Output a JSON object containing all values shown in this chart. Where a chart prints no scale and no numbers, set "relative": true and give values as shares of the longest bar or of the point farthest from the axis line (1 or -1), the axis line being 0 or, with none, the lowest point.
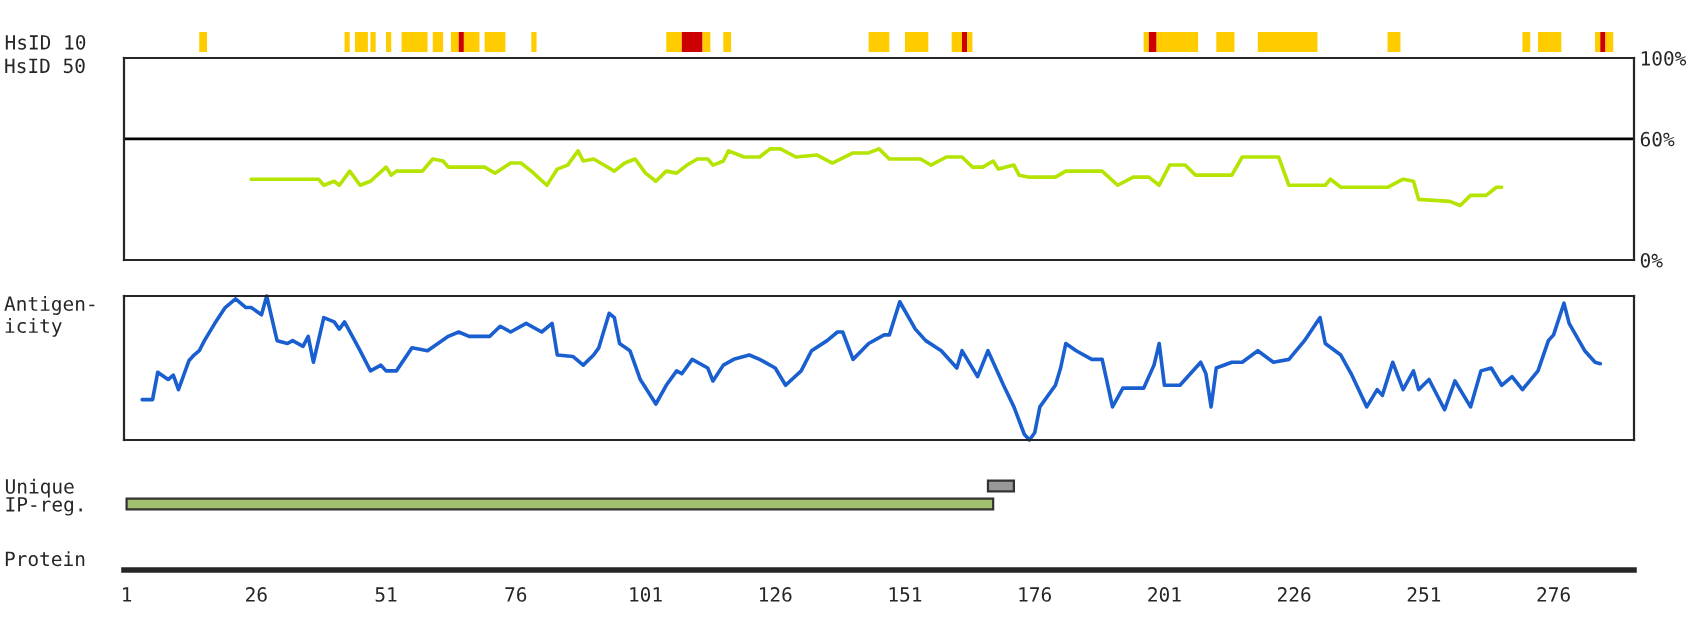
{
  "chart_data": [
    {
      "type": "bar",
      "orientation": "horizontal",
      "categories": [
        "HsID 10"
      ],
      "xlim": [
        0.5,
        291.5
      ],
      "tick_labels": "y",
      "series": [
        {
          "color": "#ffcc00",
          "base": [
            15
          ],
          "values": [
            1.5
          ]
        },
        {
          "color": "#ffcc00",
          "base": [
            43
          ],
          "values": [
            1
          ]
        },
        {
          "color": "#ffcc00",
          "base": [
            45
          ],
          "values": [
            2.5
          ]
        },
        {
          "color": "#ffcc00",
          "base": [
            48
          ],
          "values": [
            1
          ]
        },
        {
          "color": "#ffcc00",
          "base": [
            51
          ],
          "values": [
            1
          ]
        },
        {
          "color": "#ffcc00",
          "base": [
            54
          ],
          "values": [
            5
          ]
        },
        {
          "color": "#ffcc00",
          "base": [
            60
          ],
          "values": [
            2
          ]
        },
        {
          "color": "#ffcc00",
          "base": [
            63.5
          ],
          "values": [
            1.5
          ]
        },
        {
          "color": "#cc0000",
          "base": [
            65
          ],
          "values": [
            1
          ]
        },
        {
          "color": "#ffcc00",
          "base": [
            66
          ],
          "values": [
            3
          ]
        },
        {
          "color": "#ffcc00",
          "base": [
            70
          ],
          "values": [
            4
          ]
        },
        {
          "color": "#ffcc00",
          "base": [
            79
          ],
          "values": [
            1
          ]
        },
        {
          "color": "#ffcc00",
          "base": [
            105
          ],
          "values": [
            3
          ]
        },
        {
          "color": "#cc0000",
          "base": [
            108
          ],
          "values": [
            4
          ]
        },
        {
          "color": "#ffcc00",
          "base": [
            112
          ],
          "values": [
            1.5
          ]
        },
        {
          "color": "#ffcc00",
          "base": [
            116
          ],
          "values": [
            1.5
          ]
        },
        {
          "color": "#ffcc00",
          "base": [
            144
          ],
          "values": [
            4
          ]
        },
        {
          "color": "#ffcc00",
          "base": [
            151
          ],
          "values": [
            4.5
          ]
        },
        {
          "color": "#ffcc00",
          "base": [
            160
          ],
          "values": [
            2
          ]
        },
        {
          "color": "#cc0000",
          "base": [
            162
          ],
          "values": [
            1
          ]
        },
        {
          "color": "#ffcc00",
          "base": [
            163
          ],
          "values": [
            1
          ]
        },
        {
          "color": "#ffcc00",
          "base": [
            197
          ],
          "values": [
            1
          ]
        },
        {
          "color": "#cc0000",
          "base": [
            198
          ],
          "values": [
            1.5
          ]
        },
        {
          "color": "#ffcc00",
          "base": [
            199.5
          ],
          "values": [
            8
          ]
        },
        {
          "color": "#ffcc00",
          "base": [
            211
          ],
          "values": [
            3.5
          ]
        },
        {
          "color": "#ffcc00",
          "base": [
            219
          ],
          "values": [
            11.5
          ]
        },
        {
          "color": "#ffcc00",
          "base": [
            244
          ],
          "values": [
            2.5
          ]
        },
        {
          "color": "#ffcc00",
          "base": [
            270
          ],
          "values": [
            1.5
          ]
        },
        {
          "color": "#ffcc00",
          "base": [
            273
          ],
          "values": [
            4.5
          ]
        },
        {
          "color": "#ffcc00",
          "base": [
            284
          ],
          "values": [
            1
          ]
        },
        {
          "color": "#cc0000",
          "base": [
            285
          ],
          "values": [
            1
          ]
        },
        {
          "color": "#ffcc00",
          "base": [
            286
          ],
          "values": [
            1.5
          ]
        }
      ]
    },
    {
      "type": "line",
      "ylabel": "HsID 50",
      "xlim": [
        0.5,
        291.5
      ],
      "ylim": [
        0,
        100
      ],
      "yticks": [
        {
          "value": 0,
          "label": "0%"
        },
        {
          "value": 60,
          "label": "60%"
        },
        {
          "value": 100,
          "label": "100%"
        }
      ],
      "tick_labels": "y",
      "ref_lines": [
        {
          "axis": "y",
          "value": 60,
          "color": "#000000"
        }
      ],
      "series": [
        {
          "color": "#b4e400",
          "x": [
            25,
            38,
            39,
            41,
            42,
            44,
            46,
            48,
            51,
            52,
            53,
            58,
            60,
            62,
            63,
            70,
            72,
            75,
            77,
            79,
            82,
            84,
            86,
            88,
            89,
            91,
            93,
            95,
            97,
            99,
            101,
            103,
            105,
            107,
            109,
            111,
            113,
            114,
            116,
            117,
            120,
            123,
            125,
            127,
            130,
            134,
            137,
            141,
            144,
            146,
            148,
            154,
            156,
            159,
            162,
            164,
            166,
            168,
            169,
            172,
            173,
            175,
            180,
            182,
            189,
            192,
            195,
            198,
            200,
            202,
            205,
            207,
            214,
            216,
            223,
            225,
            232,
            233,
            235,
            244,
            247,
            249,
            250,
            256,
            258,
            260,
            263,
            265,
            266
          ],
          "values": [
            40,
            40,
            37,
            39,
            37,
            44,
            37,
            39,
            46,
            42,
            44,
            44,
            50,
            49,
            46,
            46,
            43,
            48,
            48,
            44,
            37,
            45,
            47,
            54,
            49,
            50,
            47,
            44,
            48,
            50,
            43,
            39,
            44,
            43,
            47,
            50,
            50,
            47,
            49,
            54,
            51,
            51,
            55,
            55,
            51,
            52,
            48,
            53,
            53,
            55,
            50,
            50,
            47,
            51,
            51,
            46,
            46,
            49,
            45,
            47,
            42,
            41,
            41,
            44,
            44,
            37,
            41,
            41,
            37,
            47,
            47,
            42,
            42,
            51,
            51,
            37,
            37,
            40,
            36,
            36,
            40,
            39,
            30,
            29,
            27,
            32,
            32,
            36,
            36
          ]
        }
      ]
    },
    {
      "type": "line",
      "ylabel": "Antigen-\nicity",
      "xlim": [
        0.5,
        291.5
      ],
      "relative": true,
      "tick_labels": false,
      "series": [
        {
          "color": "#1a5fd0",
          "x": [
            4,
            6,
            7,
            9,
            10,
            11,
            13,
            14,
            15,
            16,
            18,
            20,
            22,
            24,
            25,
            27,
            28,
            30,
            32,
            33,
            35,
            36,
            37,
            39,
            41,
            42,
            43,
            46,
            48,
            50,
            51,
            53,
            56,
            59,
            63,
            65,
            67,
            71,
            73,
            75,
            78,
            81,
            83,
            84,
            87,
            89,
            91,
            92,
            94,
            95,
            96,
            98,
            100,
            103,
            105,
            107,
            108,
            110,
            113,
            114,
            116,
            118,
            121,
            123,
            126,
            128,
            131,
            133,
            136,
            138,
            139,
            141,
            144,
            147,
            148,
            150,
            153,
            155,
            158,
            161,
            162,
            165,
            167,
            168,
            170,
            172,
            174,
            175,
            176,
            177,
            180,
            181,
            182,
            184,
            187,
            189,
            191,
            193,
            197,
            199,
            200,
            201,
            204,
            206,
            208,
            209,
            210,
            211,
            214,
            216,
            219,
            222,
            225,
            228,
            231,
            232,
            235,
            237,
            240,
            242,
            243,
            245,
            247,
            249,
            250,
            252,
            255,
            257,
            260,
            262,
            264,
            266,
            268,
            270,
            273,
            275,
            276,
            278,
            279,
            282,
            284,
            285
          ],
          "values": [
            0.28,
            0.28,
            0.47,
            0.42,
            0.45,
            0.35,
            0.55,
            0.59,
            0.62,
            0.69,
            0.81,
            0.92,
            0.98,
            0.92,
            0.92,
            0.87,
            1.0,
            0.69,
            0.67,
            0.69,
            0.65,
            0.72,
            0.54,
            0.85,
            0.82,
            0.77,
            0.82,
            0.62,
            0.48,
            0.52,
            0.48,
            0.48,
            0.64,
            0.62,
            0.72,
            0.75,
            0.72,
            0.72,
            0.79,
            0.75,
            0.81,
            0.75,
            0.81,
            0.59,
            0.58,
            0.52,
            0.59,
            0.64,
            0.88,
            0.85,
            0.67,
            0.62,
            0.42,
            0.25,
            0.38,
            0.48,
            0.46,
            0.56,
            0.5,
            0.41,
            0.52,
            0.56,
            0.59,
            0.56,
            0.5,
            0.38,
            0.48,
            0.62,
            0.69,
            0.75,
            0.75,
            0.56,
            0.67,
            0.73,
            0.73,
            0.96,
            0.77,
            0.69,
            0.62,
            0.5,
            0.62,
            0.44,
            0.62,
            0.54,
            0.38,
            0.23,
            0.04,
            0,
            0.05,
            0.23,
            0.38,
            0.5,
            0.67,
            0.62,
            0.56,
            0.56,
            0.23,
            0.36,
            0.36,
            0.52,
            0.67,
            0.38,
            0.38,
            0.46,
            0.54,
            0.46,
            0.23,
            0.5,
            0.54,
            0.54,
            0.62,
            0.54,
            0.56,
            0.69,
            0.85,
            0.67,
            0.59,
            0.46,
            0.23,
            0.35,
            0.31,
            0.54,
            0.35,
            0.48,
            0.35,
            0.42,
            0.21,
            0.41,
            0.23,
            0.48,
            0.5,
            0.38,
            0.44,
            0.35,
            0.48,
            0.69,
            0.73,
            0.95,
            0.81,
            0.62,
            0.54,
            0.53
          ]
        }
      ]
    },
    {
      "type": "bar",
      "orientation": "horizontal",
      "categories": [
        "Unique",
        "IP-reg."
      ],
      "xlabel": "Protein",
      "xlim": [
        0.5,
        291.5
      ],
      "xticks": [
        1,
        26,
        51,
        76,
        101,
        126,
        151,
        176,
        201,
        226,
        251,
        276
      ],
      "base": [
        167,
        1
      ],
      "values": [
        5,
        167
      ],
      "colors": [
        "#999999",
        "#a0c070"
      ]
    }
  ]
}
